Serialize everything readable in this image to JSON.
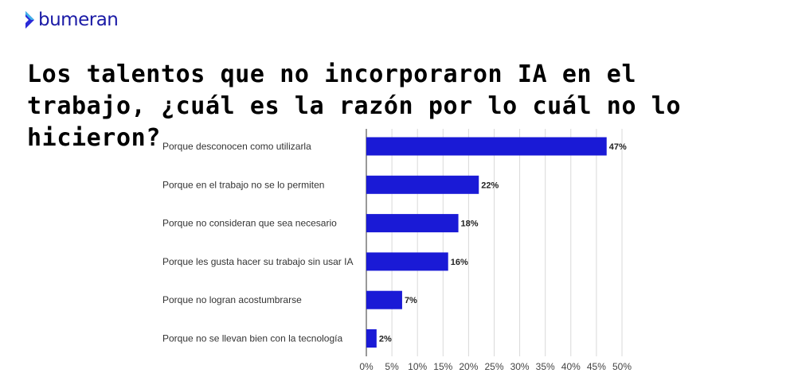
{
  "brand": {
    "name": "bumeran",
    "logo_icon": "chevron-icon",
    "color": "#1a1aa6"
  },
  "chart_data": {
    "type": "bar",
    "orientation": "horizontal",
    "title": "Los talentos que no incorporaron IA en el trabajo, ¿cuál es la razón por lo cuál no lo hicieron?",
    "categories": [
      "Porque desconocen como utilizarla",
      "Porque en el trabajo no se lo permiten",
      "Porque no consideran que sea necesario",
      "Porque les gusta hacer su trabajo sin usar IA",
      "Porque no logran acostumbrarse",
      "Porque no se llevan bien con la tecnología"
    ],
    "values": [
      47,
      22,
      18,
      16,
      7,
      2
    ],
    "data_labels": [
      "47%",
      "22%",
      "18%",
      "16%",
      "7%",
      "2%"
    ],
    "xlim": [
      0,
      50
    ],
    "xticks": [
      "0%",
      "5%",
      "10%",
      "15%",
      "20%",
      "25%",
      "30%",
      "35%",
      "40%",
      "45%",
      "50%"
    ],
    "grid": true,
    "bar_color": "#1a1ad6",
    "grid_color": "#d9d9d9"
  }
}
